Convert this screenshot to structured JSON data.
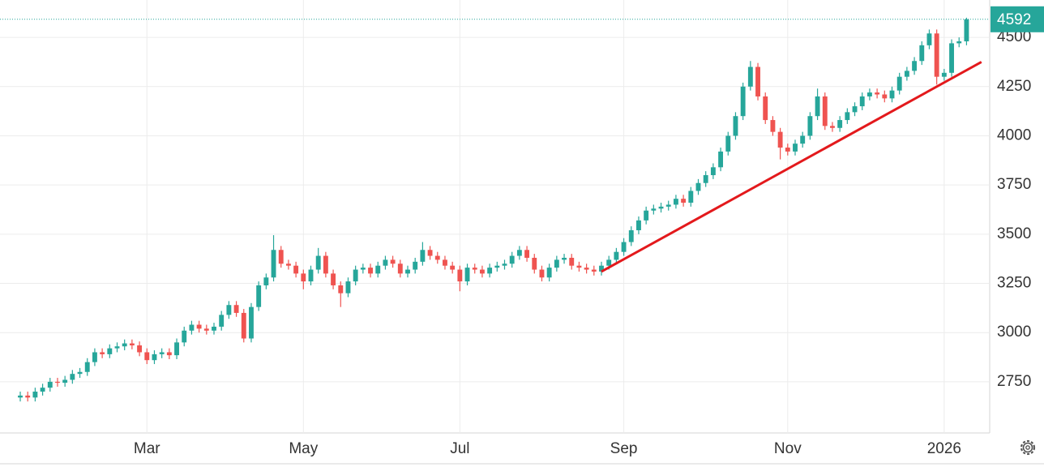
{
  "chart_data": {
    "type": "candlestick",
    "up_color": "#26a69a",
    "down_color": "#ef5350",
    "grid": true,
    "xlim": [
      0,
      130
    ],
    "xticks": [
      {
        "value": 17,
        "label": "Mar"
      },
      {
        "value": 38,
        "label": "May"
      },
      {
        "value": 59,
        "label": "Jul"
      },
      {
        "value": 81,
        "label": "Sep"
      },
      {
        "value": 103,
        "label": "Nov"
      },
      {
        "value": 124,
        "label": "2026"
      }
    ],
    "ylim": [
      2490,
      4690
    ],
    "yticks": [
      2750,
      3000,
      3250,
      3500,
      3750,
      4000,
      4250,
      4500
    ],
    "last_price": 4592,
    "last_price_color": "#26a69a",
    "trendline": {
      "x": [
        78,
        129
      ],
      "y": [
        3310,
        4375
      ],
      "color": "#e3191c"
    },
    "open": [
      2670,
      2680,
      2670,
      2700,
      2720,
      2750,
      2745,
      2760,
      2790,
      2800,
      2850,
      2900,
      2890,
      2920,
      2930,
      2945,
      2935,
      2900,
      2860,
      2890,
      2900,
      2885,
      2950,
      3010,
      3040,
      3020,
      3010,
      3030,
      3090,
      3140,
      3100,
      2970,
      3130,
      3240,
      3280,
      3420,
      3350,
      3340,
      3300,
      3260,
      3320,
      3390,
      3300,
      3240,
      3200,
      3260,
      3320,
      3330,
      3300,
      3340,
      3370,
      3350,
      3300,
      3320,
      3360,
      3420,
      3390,
      3370,
      3340,
      3320,
      3260,
      3330,
      3320,
      3300,
      3330,
      3340,
      3350,
      3390,
      3420,
      3380,
      3320,
      3280,
      3330,
      3370,
      3380,
      3340,
      3330,
      3320,
      3310,
      3340,
      3370,
      3410,
      3460,
      3520,
      3570,
      3620,
      3630,
      3640,
      3650,
      3680,
      3660,
      3720,
      3760,
      3800,
      3840,
      3920,
      4000,
      4100,
      4250,
      4350,
      4200,
      4080,
      4020,
      3940,
      3920,
      3960,
      4000,
      4100,
      4200,
      4050,
      4040,
      4080,
      4120,
      4150,
      4200,
      4220,
      4210,
      4190,
      4230,
      4300,
      4330,
      4380,
      4460,
      4520,
      4300,
      4320,
      4470,
      4480
    ],
    "high": [
      2700,
      2700,
      2720,
      2740,
      2770,
      2770,
      2780,
      2810,
      2820,
      2870,
      2920,
      2920,
      2940,
      2950,
      2965,
      2965,
      2955,
      2920,
      2910,
      2920,
      2920,
      2970,
      3030,
      3060,
      3060,
      3040,
      3050,
      3110,
      3160,
      3160,
      3120,
      3150,
      3260,
      3300,
      3495,
      3440,
      3370,
      3360,
      3320,
      3340,
      3430,
      3410,
      3320,
      3260,
      3280,
      3340,
      3350,
      3350,
      3360,
      3390,
      3390,
      3370,
      3340,
      3380,
      3460,
      3440,
      3410,
      3390,
      3360,
      3340,
      3350,
      3350,
      3340,
      3350,
      3360,
      3370,
      3410,
      3440,
      3440,
      3400,
      3340,
      3350,
      3390,
      3400,
      3400,
      3360,
      3350,
      3340,
      3360,
      3390,
      3430,
      3480,
      3540,
      3590,
      3640,
      3650,
      3660,
      3670,
      3700,
      3700,
      3740,
      3780,
      3820,
      3860,
      3940,
      4020,
      4120,
      4270,
      4380,
      4370,
      4220,
      4100,
      4040,
      3960,
      3980,
      4020,
      4120,
      4240,
      4220,
      4070,
      4100,
      4140,
      4170,
      4220,
      4240,
      4240,
      4230,
      4250,
      4320,
      4350,
      4400,
      4480,
      4540,
      4540,
      4340,
      4490,
      4500,
      4600
    ],
    "low": [
      2650,
      2650,
      2650,
      2680,
      2700,
      2725,
      2725,
      2740,
      2770,
      2780,
      2830,
      2870,
      2870,
      2900,
      2910,
      2915,
      2880,
      2840,
      2840,
      2870,
      2865,
      2865,
      2930,
      2990,
      3000,
      2990,
      2990,
      3010,
      3070,
      3080,
      2950,
      2950,
      3110,
      3220,
      3260,
      3330,
      3320,
      3280,
      3220,
      3240,
      3300,
      3280,
      3220,
      3130,
      3180,
      3240,
      3300,
      3280,
      3280,
      3320,
      3330,
      3280,
      3280,
      3300,
      3340,
      3370,
      3350,
      3320,
      3300,
      3210,
      3240,
      3300,
      3280,
      3280,
      3310,
      3320,
      3330,
      3370,
      3360,
      3300,
      3260,
      3260,
      3310,
      3350,
      3320,
      3310,
      3300,
      3290,
      3290,
      3320,
      3350,
      3390,
      3440,
      3500,
      3550,
      3600,
      3610,
      3620,
      3630,
      3640,
      3640,
      3700,
      3740,
      3780,
      3820,
      3900,
      3980,
      4080,
      4230,
      4180,
      4060,
      4000,
      3880,
      3900,
      3900,
      3940,
      3980,
      4080,
      4030,
      4020,
      4020,
      4060,
      4100,
      4130,
      4180,
      4190,
      4170,
      4170,
      4210,
      4280,
      4310,
      4360,
      4440,
      4260,
      4280,
      4300,
      4450,
      4460
    ],
    "close": [
      2680,
      2670,
      2700,
      2720,
      2750,
      2745,
      2760,
      2790,
      2800,
      2850,
      2900,
      2890,
      2920,
      2930,
      2945,
      2935,
      2900,
      2860,
      2890,
      2900,
      2885,
      2950,
      3010,
      3040,
      3020,
      3010,
      3030,
      3090,
      3140,
      3100,
      2970,
      3130,
      3240,
      3280,
      3420,
      3350,
      3340,
      3300,
      3260,
      3320,
      3390,
      3300,
      3240,
      3200,
      3260,
      3320,
      3330,
      3300,
      3340,
      3370,
      3350,
      3300,
      3320,
      3360,
      3420,
      3390,
      3370,
      3340,
      3320,
      3260,
      3330,
      3320,
      3300,
      3330,
      3340,
      3350,
      3390,
      3420,
      3380,
      3320,
      3280,
      3330,
      3370,
      3380,
      3340,
      3330,
      3320,
      3310,
      3340,
      3370,
      3410,
      3460,
      3520,
      3570,
      3620,
      3630,
      3640,
      3650,
      3680,
      3660,
      3720,
      3760,
      3800,
      3840,
      3920,
      4000,
      4100,
      4250,
      4350,
      4200,
      4080,
      4020,
      3940,
      3920,
      3960,
      4000,
      4100,
      4200,
      4050,
      4040,
      4080,
      4120,
      4150,
      4200,
      4220,
      4210,
      4190,
      4230,
      4300,
      4330,
      4380,
      4460,
      4520,
      4300,
      4320,
      4470,
      4480,
      4592
    ]
  }
}
